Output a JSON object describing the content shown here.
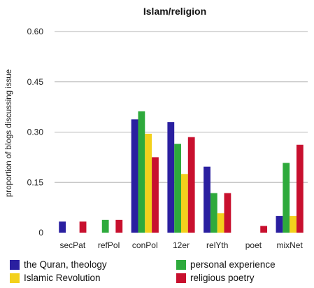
{
  "chart_data": {
    "type": "bar",
    "title": "Islam/religion",
    "ylabel": "proportion of blogs discussing issue",
    "xlabel": "",
    "ylim": [
      0,
      0.6
    ],
    "yticks": [
      "0",
      "0.15",
      "0.30",
      "0.45",
      "0.60"
    ],
    "ytick_values": [
      0,
      0.15,
      0.3,
      0.45,
      0.6
    ],
    "grid": "horizontal",
    "legend_position": "bottom",
    "categories": [
      "secPat",
      "refPol",
      "conPol",
      "12er",
      "relYth",
      "poet",
      "mixNet"
    ],
    "series": [
      {
        "name": "the Quran, theology",
        "color": "#2a1fa0",
        "values": [
          0.033,
          0,
          0.338,
          0.33,
          0.197,
          0,
          0.05
        ]
      },
      {
        "name": "personal experience",
        "color": "#2eaa3c",
        "values": [
          0,
          0.038,
          0.362,
          0.265,
          0.118,
          0,
          0.208
        ]
      },
      {
        "name": "Islamic Revolution",
        "color": "#f3d11c",
        "values": [
          0,
          0,
          0.295,
          0.175,
          0.058,
          0,
          0.05
        ]
      },
      {
        "name": "religious poetry",
        "color": "#c8102e",
        "values": [
          0.033,
          0.038,
          0.225,
          0.285,
          0.118,
          0.02,
          0.262
        ]
      }
    ]
  }
}
